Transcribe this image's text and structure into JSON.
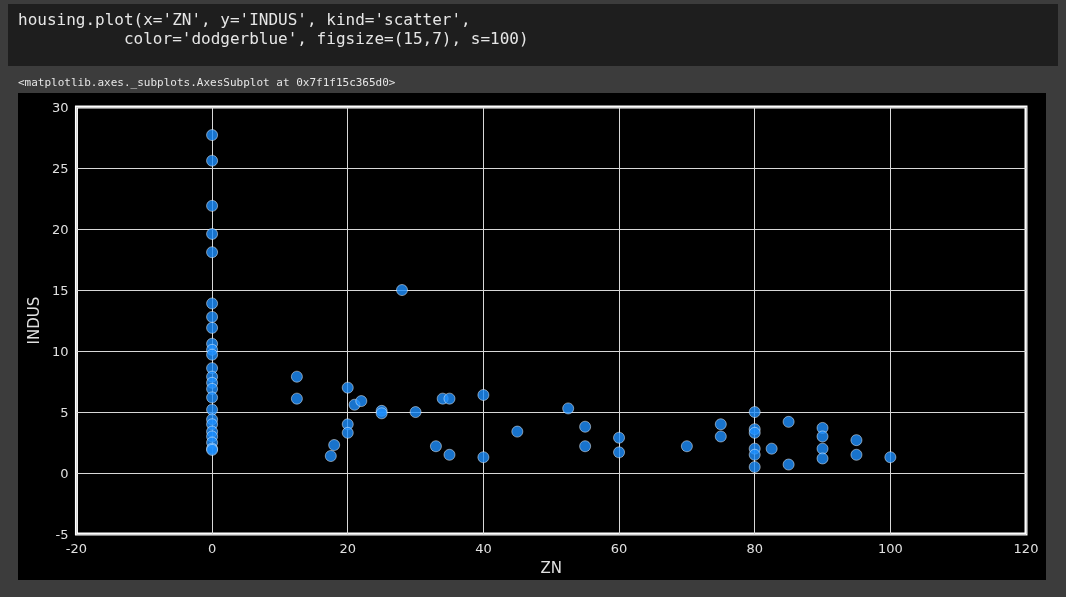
{
  "chart_data": {
    "type": "scatter",
    "xlabel": "ZN",
    "ylabel": "INDUS",
    "annotations": [
      "housing.plot(x='ZN', y='INDUS', kind='scatter',\n           color='dodgerblue', figsize=(15,7), s=100)",
      "<matplotlib.axes._subplots.AxesSubplot at 0x7f1f15c365d0>"
    ],
    "x": [
      0,
      0,
      0,
      0,
      0,
      0,
      0,
      0,
      0,
      0,
      0,
      0,
      0,
      0,
      0,
      0,
      0,
      0,
      0,
      0,
      0,
      0,
      0,
      0,
      12.5,
      12.5,
      17.5,
      18,
      20,
      20,
      20,
      21,
      22,
      25,
      25,
      28,
      30,
      33,
      34,
      35,
      35,
      40,
      40,
      45,
      52.5,
      55,
      55,
      60,
      60,
      70,
      75,
      75,
      80,
      80,
      80,
      80,
      80,
      80,
      82.5,
      85,
      85,
      90,
      90,
      90,
      90,
      95,
      95,
      100
    ],
    "values": [
      27.7,
      25.6,
      21.9,
      19.6,
      18.1,
      13.9,
      12.8,
      11.9,
      10.6,
      10.1,
      9.7,
      8.6,
      7.9,
      7.4,
      6.9,
      6.2,
      5.2,
      4.4,
      4.0,
      3.4,
      3.0,
      2.5,
      2.0,
      1.9,
      7.9,
      6.1,
      1.4,
      2.3,
      7.0,
      4.0,
      3.3,
      5.6,
      5.9,
      5.1,
      4.9,
      15.0,
      5.0,
      2.2,
      6.1,
      6.1,
      1.5,
      6.4,
      1.3,
      3.4,
      5.3,
      3.8,
      2.2,
      2.9,
      1.7,
      2.2,
      4.0,
      3.0,
      5.0,
      3.6,
      3.3,
      2.0,
      1.5,
      0.5,
      2.0,
      4.2,
      0.7,
      3.7,
      3.0,
      2.0,
      1.2,
      2.7,
      1.5,
      1.3
    ],
    "color": "#1e90ff",
    "marker": "circle",
    "grid": true,
    "xlim": [
      -20,
      120
    ],
    "xticks": [
      -20,
      0,
      20,
      40,
      60,
      80,
      100,
      120
    ],
    "ylim": [
      -5,
      30
    ],
    "yticks": [
      -5,
      0,
      5,
      10,
      15,
      20,
      25,
      30
    ]
  }
}
